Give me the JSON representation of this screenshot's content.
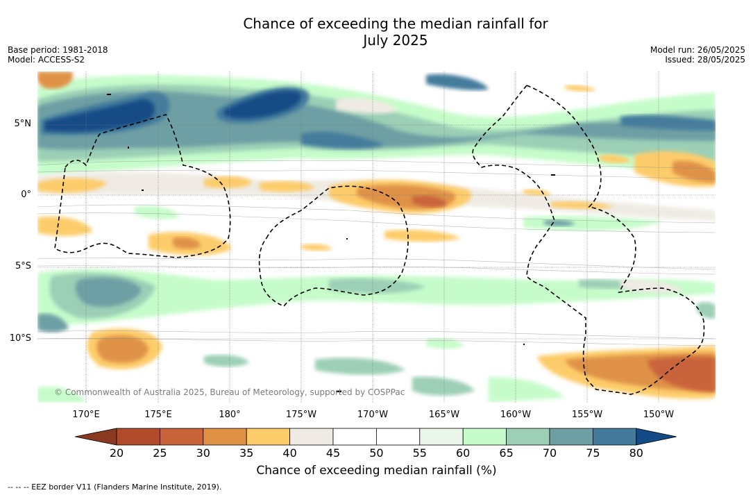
{
  "map": {
    "title_line1": "Chance of exceeding the median rainfall for",
    "title_line2": "July 2025",
    "base_period": "Base period: 1981-2018",
    "model": "Model: ACCESS-S2",
    "model_run": "Model run: 26/05/2025",
    "issued": "Issued: 28/05/2025",
    "copyright": "© Commonwealth of Australia 2025, Bureau of Meteorology, supported by COSPPac",
    "footnote": "--  --  -- EEZ border V11 (Flanders Marine Institute, 2019).",
    "lat_labels": [
      "5°N",
      "0°",
      "5°S",
      "10°S"
    ],
    "lon_labels": [
      "170°E",
      "175°E",
      "180°",
      "175°W",
      "170°W",
      "165°W",
      "160°W",
      "155°W",
      "150°W"
    ]
  },
  "colorbar": {
    "label": "Chance of exceeding median rainfall (%)",
    "ticks": [
      "20",
      "25",
      "30",
      "35",
      "40",
      "45",
      "50",
      "55",
      "60",
      "65",
      "70",
      "75",
      "80"
    ],
    "colors": [
      "#8b3a22",
      "#b24a2c",
      "#c9643a",
      "#df9246",
      "#fdcc6a",
      "#efebe4",
      "#ffffff",
      "#ffffff",
      "#eaf6ea",
      "#c6fcca",
      "#9ccfb6",
      "#6e9fa4",
      "#447b9c",
      "#124b86"
    ]
  }
}
